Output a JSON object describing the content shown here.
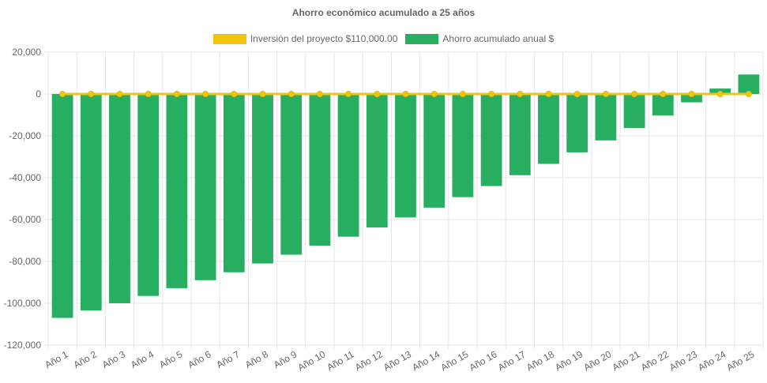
{
  "chart_data": {
    "type": "bar",
    "title": "Ahorro económico acumulado a 25 años",
    "categories": [
      "Año 1",
      "Año 2",
      "Año 3",
      "Año 4",
      "Año 5",
      "Año 6",
      "Año 7",
      "Año 8",
      "Año 9",
      "Año 10",
      "Año 11",
      "Año 12",
      "Año 13",
      "Año 14",
      "Año 15",
      "Año 16",
      "Año 17",
      "Año 18",
      "Año 19",
      "Año 20",
      "Año 21",
      "Año 22",
      "Año 23",
      "Año 24",
      "Año 25"
    ],
    "series": [
      {
        "name": "Inversión del proyecto $110,000.00",
        "type": "line",
        "color": "#f1c40f",
        "values": [
          0,
          0,
          0,
          0,
          0,
          0,
          0,
          0,
          0,
          0,
          0,
          0,
          0,
          0,
          0,
          0,
          0,
          0,
          0,
          0,
          0,
          0,
          0,
          0,
          0
        ]
      },
      {
        "name": "Ahorro acumulado anual $",
        "type": "bar",
        "color": "#27ae60",
        "values": [
          -107000,
          -103500,
          -100000,
          -96500,
          -92800,
          -89000,
          -85200,
          -81000,
          -76800,
          -72500,
          -68200,
          -63800,
          -59000,
          -54300,
          -49300,
          -44000,
          -38800,
          -33400,
          -27900,
          -22200,
          -16300,
          -10300,
          -4000,
          2600,
          9300
        ]
      }
    ],
    "xlabel": "",
    "ylabel": "",
    "ylim": [
      -120000,
      20000
    ],
    "yticks": [
      20000,
      0,
      -20000,
      -40000,
      -60000,
      -80000,
      -100000,
      -120000
    ],
    "ytick_labels": [
      "20,000",
      "0",
      "-20,000",
      "-40,000",
      "-60,000",
      "-80,000",
      "-100,000",
      "-120,000"
    ],
    "grid": true,
    "legend_position": "top"
  }
}
